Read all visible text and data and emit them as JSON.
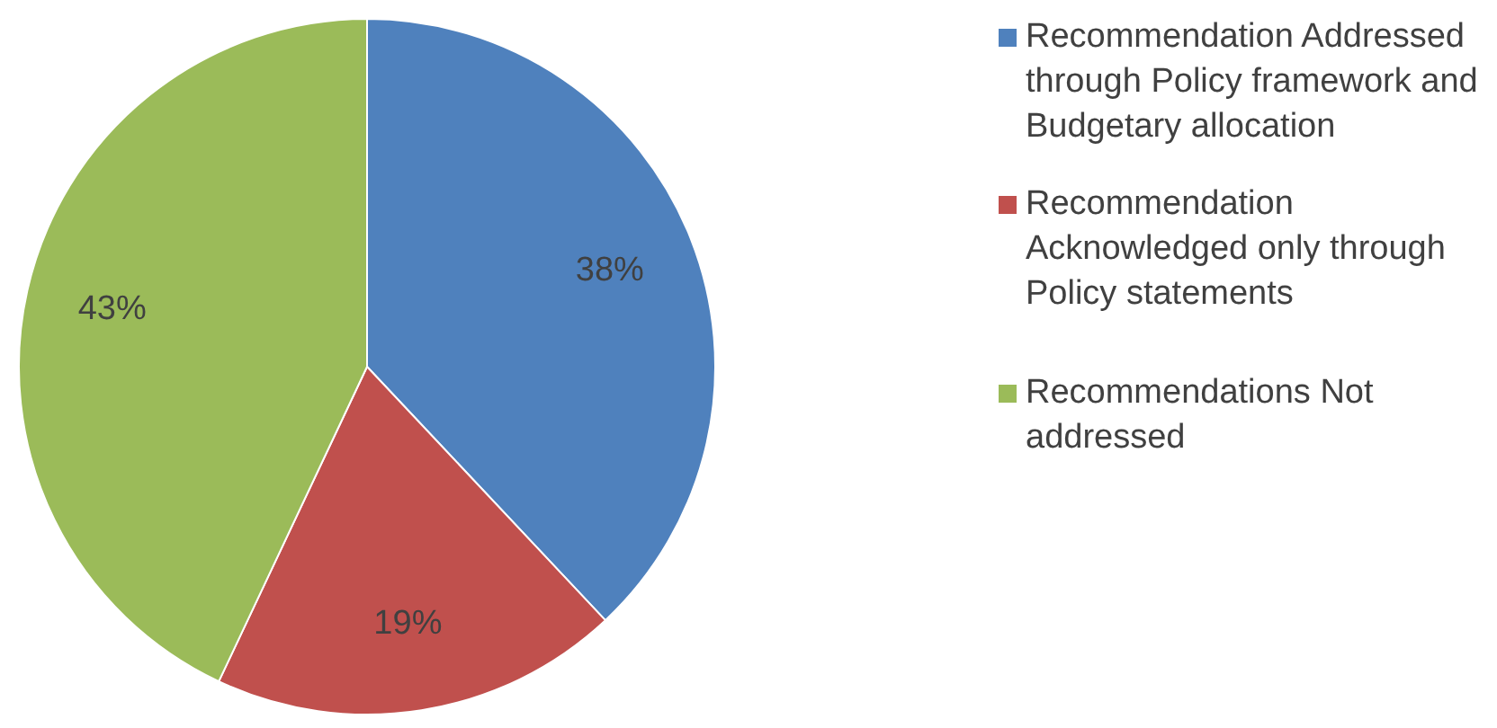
{
  "chart_data": {
    "type": "pie",
    "categories": [
      "Recommendation Addressed through Policy framework and Budgetary allocation",
      "Recommendation Acknowledged only through Policy statements",
      "Recommendations Not addressed"
    ],
    "values": [
      38,
      19,
      43
    ],
    "colors": [
      "#4f81bd",
      "#c0504d",
      "#9bbb59"
    ],
    "value_labels": [
      "38%",
      "19%",
      "43%"
    ],
    "legend": "right"
  }
}
